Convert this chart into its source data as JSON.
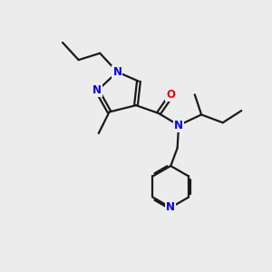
{
  "bg_color": "#ececec",
  "line_color": "#1a1a1a",
  "n_color": "#0000ee",
  "o_color": "#ee0000",
  "bond_width": 1.6,
  "figsize": [
    3.0,
    3.0
  ],
  "dpi": 100,
  "xlim": [
    0,
    10
  ],
  "ylim": [
    0,
    10
  ]
}
